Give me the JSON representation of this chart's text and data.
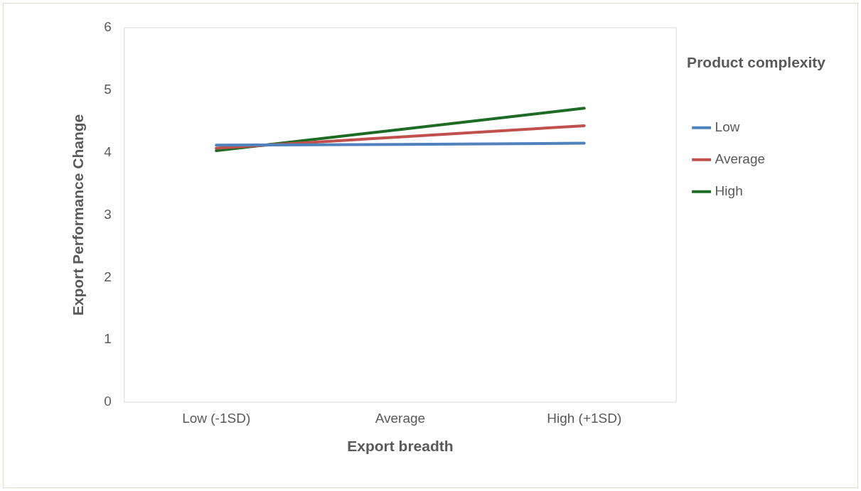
{
  "chart_data": {
    "type": "line",
    "xlabel": "Export breadth",
    "ylabel": "Export Performance Change",
    "legend_title": "Product complexity",
    "categories": [
      "Low (-1SD)",
      "Average",
      "High (+1SD)"
    ],
    "series": [
      {
        "name": "Low",
        "color": "#4f81bd",
        "values": [
          4.12,
          4.13,
          4.15
        ]
      },
      {
        "name": "Average",
        "color": "#c0504d",
        "values": [
          4.07,
          4.25,
          4.43
        ]
      },
      {
        "name": "High",
        "color": "#1e6b24",
        "values": [
          4.03,
          4.37,
          4.71
        ]
      }
    ],
    "ylim": [
      0,
      6
    ],
    "yticks": [
      0,
      1,
      2,
      3,
      4,
      5,
      6
    ],
    "grid": false,
    "legend": "right",
    "marker": "none",
    "line_style": "solid"
  }
}
